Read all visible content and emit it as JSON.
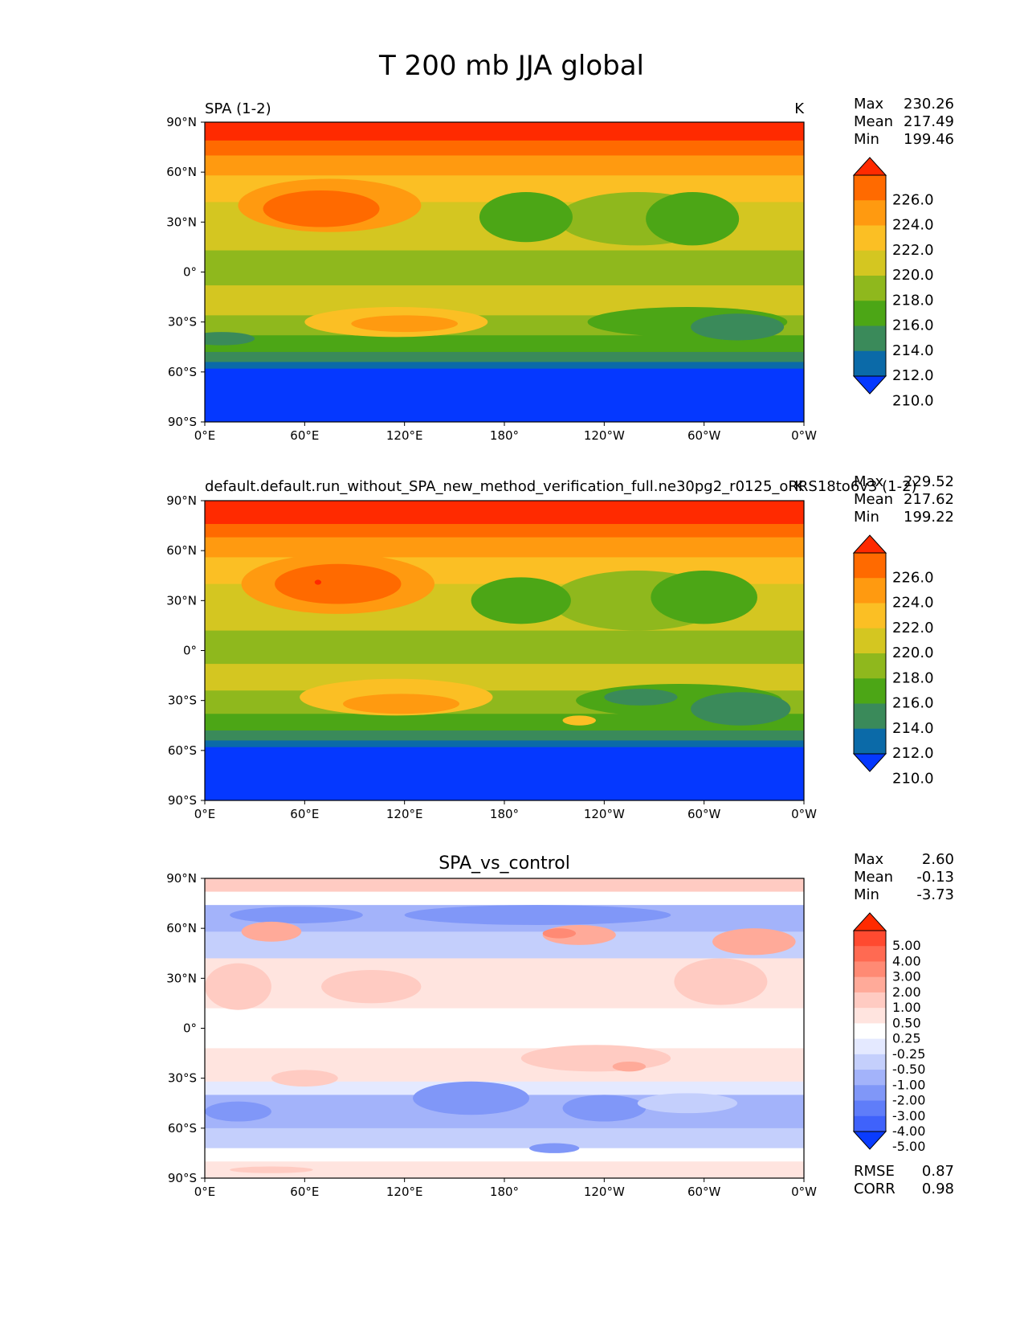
{
  "figure_title": "T 200 mb JJA global",
  "chart_data": [
    {
      "type": "heatmap",
      "id": "test",
      "title_left": "SPA (1-2)",
      "title_center": "",
      "units": "K",
      "stats": {
        "labels": [
          "Max",
          "Mean",
          "Min"
        ],
        "values": [
          "230.26",
          "217.49",
          "199.46"
        ]
      },
      "x_ticks": [
        "0°E",
        "60°E",
        "120°E",
        "180°",
        "120°W",
        "60°W",
        "0°W"
      ],
      "y_ticks": [
        "90°N",
        "60°N",
        "30°N",
        "0°",
        "30°S",
        "60°S",
        "90°S"
      ],
      "xlim": [
        0,
        360
      ],
      "ylim": [
        -90,
        90
      ],
      "colorbar": {
        "levels": [
          "226.0",
          "224.0",
          "222.0",
          "220.0",
          "218.0",
          "216.0",
          "214.0",
          "212.0",
          "210.0"
        ],
        "colors": [
          "#ff2a00",
          "#ff6a00",
          "#ff9a10",
          "#fbbf24",
          "#d4c621",
          "#8fb81d",
          "#4ca616",
          "#3a8a5a",
          "#0b6aa8",
          "#0538ff"
        ]
      },
      "bands": [
        {
          "lat_top": 90,
          "lat_bot": 79,
          "color": "#ff2a00"
        },
        {
          "lat_top": 79,
          "lat_bot": 70,
          "color": "#ff6a00"
        },
        {
          "lat_top": 70,
          "lat_bot": 58,
          "color": "#ff9a10"
        },
        {
          "lat_top": 58,
          "lat_bot": 42,
          "color": "#fbbf24"
        },
        {
          "lat_top": 42,
          "lat_bot": 13,
          "color": "#d4c621"
        },
        {
          "lat_top": 13,
          "lat_bot": -8,
          "color": "#8fb81d"
        },
        {
          "lat_top": -8,
          "lat_bot": -26,
          "color": "#d4c621"
        },
        {
          "lat_top": -26,
          "lat_bot": -38,
          "color": "#8fb81d"
        },
        {
          "lat_top": -38,
          "lat_bot": -48,
          "color": "#4ca616"
        },
        {
          "lat_top": -48,
          "lat_bot": -54,
          "color": "#3a8a5a"
        },
        {
          "lat_top": -54,
          "lat_bot": -58,
          "color": "#0b6aa8"
        },
        {
          "lat_top": -58,
          "lat_bot": -90,
          "color": "#0538ff"
        }
      ],
      "blobs": [
        {
          "lon": 75,
          "lat": 40,
          "rlon": 55,
          "rlat": 16,
          "color": "#ff9a10"
        },
        {
          "lon": 70,
          "lat": 38,
          "rlon": 35,
          "rlat": 11,
          "color": "#ff6a00"
        },
        {
          "lon": 260,
          "lat": 32,
          "rlon": 48,
          "rlat": 16,
          "color": "#8fb81d"
        },
        {
          "lon": 193,
          "lat": 33,
          "rlon": 28,
          "rlat": 15,
          "color": "#4ca616"
        },
        {
          "lon": 293,
          "lat": 32,
          "rlon": 28,
          "rlat": 16,
          "color": "#4ca616"
        },
        {
          "lon": 115,
          "lat": -30,
          "rlon": 55,
          "rlat": 9,
          "color": "#fbbf24"
        },
        {
          "lon": 120,
          "lat": -31,
          "rlon": 32,
          "rlat": 5,
          "color": "#ff9a10"
        },
        {
          "lon": 290,
          "lat": -30,
          "rlon": 60,
          "rlat": 9,
          "color": "#4ca616"
        },
        {
          "lon": 320,
          "lat": -33,
          "rlon": 28,
          "rlat": 8,
          "color": "#3a8a5a"
        },
        {
          "lon": 10,
          "lat": -40,
          "rlon": 20,
          "rlat": 4,
          "color": "#3a8a5a"
        }
      ]
    },
    {
      "type": "heatmap",
      "id": "ref",
      "title_left": "default.default.run_without_SPA_new_method_verification_full.ne30pg2_r0125_oRRS18to6v3 (1-2)",
      "title_center": "",
      "units": "K",
      "stats": {
        "labels": [
          "Max",
          "Mean",
          "Min"
        ],
        "values": [
          "229.52",
          "217.62",
          "199.22"
        ]
      },
      "x_ticks": [
        "0°E",
        "60°E",
        "120°E",
        "180°",
        "120°W",
        "60°W",
        "0°W"
      ],
      "y_ticks": [
        "90°N",
        "60°N",
        "30°N",
        "0°",
        "30°S",
        "60°S",
        "90°S"
      ],
      "xlim": [
        0,
        360
      ],
      "ylim": [
        -90,
        90
      ],
      "colorbar": {
        "levels": [
          "226.0",
          "224.0",
          "222.0",
          "220.0",
          "218.0",
          "216.0",
          "214.0",
          "212.0",
          "210.0"
        ],
        "colors": [
          "#ff2a00",
          "#ff6a00",
          "#ff9a10",
          "#fbbf24",
          "#d4c621",
          "#8fb81d",
          "#4ca616",
          "#3a8a5a",
          "#0b6aa8",
          "#0538ff"
        ]
      },
      "bands": [
        {
          "lat_top": 90,
          "lat_bot": 76,
          "color": "#ff2a00"
        },
        {
          "lat_top": 76,
          "lat_bot": 68,
          "color": "#ff6a00"
        },
        {
          "lat_top": 68,
          "lat_bot": 56,
          "color": "#ff9a10"
        },
        {
          "lat_top": 56,
          "lat_bot": 40,
          "color": "#fbbf24"
        },
        {
          "lat_top": 40,
          "lat_bot": 12,
          "color": "#d4c621"
        },
        {
          "lat_top": 12,
          "lat_bot": -8,
          "color": "#8fb81d"
        },
        {
          "lat_top": -8,
          "lat_bot": -24,
          "color": "#d4c621"
        },
        {
          "lat_top": -24,
          "lat_bot": -38,
          "color": "#8fb81d"
        },
        {
          "lat_top": -38,
          "lat_bot": -48,
          "color": "#4ca616"
        },
        {
          "lat_top": -48,
          "lat_bot": -54,
          "color": "#3a8a5a"
        },
        {
          "lat_top": -54,
          "lat_bot": -58,
          "color": "#0b6aa8"
        },
        {
          "lat_top": -58,
          "lat_bot": -90,
          "color": "#0538ff"
        }
      ],
      "blobs": [
        {
          "lon": 80,
          "lat": 40,
          "rlon": 58,
          "rlat": 18,
          "color": "#ff9a10"
        },
        {
          "lon": 80,
          "lat": 40,
          "rlon": 38,
          "rlat": 12,
          "color": "#ff6a00"
        },
        {
          "lon": 68,
          "lat": 41,
          "rlon": 2,
          "rlat": 1.5,
          "color": "#ff2a00"
        },
        {
          "lon": 260,
          "lat": 30,
          "rlon": 52,
          "rlat": 18,
          "color": "#8fb81d"
        },
        {
          "lon": 190,
          "lat": 30,
          "rlon": 30,
          "rlat": 14,
          "color": "#4ca616"
        },
        {
          "lon": 300,
          "lat": 32,
          "rlon": 32,
          "rlat": 16,
          "color": "#4ca616"
        },
        {
          "lon": 115,
          "lat": -28,
          "rlon": 58,
          "rlat": 11,
          "color": "#fbbf24"
        },
        {
          "lon": 118,
          "lat": -32,
          "rlon": 35,
          "rlat": 6,
          "color": "#ff9a10"
        },
        {
          "lon": 225,
          "lat": -42,
          "rlon": 10,
          "rlat": 3,
          "color": "#fbbf24"
        },
        {
          "lon": 285,
          "lat": -30,
          "rlon": 62,
          "rlat": 10,
          "color": "#4ca616"
        },
        {
          "lon": 322,
          "lat": -35,
          "rlon": 30,
          "rlat": 10,
          "color": "#3a8a5a"
        },
        {
          "lon": 262,
          "lat": -28,
          "rlon": 22,
          "rlat": 5,
          "color": "#3a8a5a"
        }
      ]
    },
    {
      "type": "heatmap",
      "id": "diff",
      "title_left": "",
      "title_center": "SPA_vs_control",
      "units": "",
      "stats": {
        "labels": [
          "Max",
          "Mean",
          "Min"
        ],
        "values": [
          "2.60",
          "-0.13",
          "-3.73"
        ]
      },
      "metrics": {
        "labels": [
          "RMSE",
          "CORR"
        ],
        "values": [
          "0.87",
          "0.98"
        ]
      },
      "x_ticks": [
        "0°E",
        "60°E",
        "120°E",
        "180°",
        "120°W",
        "60°W",
        "0°W"
      ],
      "y_ticks": [
        "90°N",
        "60°N",
        "30°N",
        "0°",
        "30°S",
        "60°S",
        "90°S"
      ],
      "xlim": [
        0,
        360
      ],
      "ylim": [
        -90,
        90
      ],
      "colorbar": {
        "levels": [
          "5.00",
          "4.00",
          "3.00",
          "2.00",
          "1.00",
          "0.50",
          "0.25",
          "-0.25",
          "-0.50",
          "-1.00",
          "-2.00",
          "-3.00",
          "-4.00",
          "-5.00"
        ],
        "colors": [
          "#ff2a00",
          "#ff4a30",
          "#ff6a52",
          "#ff8a74",
          "#ffaa99",
          "#ffcbc2",
          "#ffe4df",
          "#ffffff",
          "#e4e9ff",
          "#c4cffc",
          "#a3b3fa",
          "#8097f8",
          "#5f7df9",
          "#3f62fb",
          "#0a3cff"
        ]
      },
      "bands": [
        {
          "lat_top": 90,
          "lat_bot": 82,
          "color": "#ffcbc2"
        },
        {
          "lat_top": 82,
          "lat_bot": 74,
          "color": "#ffffff"
        },
        {
          "lat_top": 74,
          "lat_bot": 58,
          "color": "#a3b3fa"
        },
        {
          "lat_top": 58,
          "lat_bot": 42,
          "color": "#c4cffc"
        },
        {
          "lat_top": 42,
          "lat_bot": 12,
          "color": "#ffe4df"
        },
        {
          "lat_top": 12,
          "lat_bot": -12,
          "color": "#ffffff"
        },
        {
          "lat_top": -12,
          "lat_bot": -32,
          "color": "#ffe4df"
        },
        {
          "lat_top": -32,
          "lat_bot": -40,
          "color": "#e4e9ff"
        },
        {
          "lat_top": -40,
          "lat_bot": -60,
          "color": "#a3b3fa"
        },
        {
          "lat_top": -60,
          "lat_bot": -72,
          "color": "#c4cffc"
        },
        {
          "lat_top": -72,
          "lat_bot": -80,
          "color": "#ffffff"
        },
        {
          "lat_top": -80,
          "lat_bot": -90,
          "color": "#ffe4df"
        }
      ],
      "blobs": [
        {
          "lon": 200,
          "lat": 68,
          "rlon": 80,
          "rlat": 6,
          "color": "#8097f8"
        },
        {
          "lon": 55,
          "lat": 68,
          "rlon": 40,
          "rlat": 5,
          "color": "#8097f8"
        },
        {
          "lon": 40,
          "lat": 58,
          "rlon": 18,
          "rlat": 6,
          "color": "#ffaa99"
        },
        {
          "lon": 225,
          "lat": 56,
          "rlon": 22,
          "rlat": 6,
          "color": "#ffaa99"
        },
        {
          "lon": 213,
          "lat": 57,
          "rlon": 10,
          "rlat": 3,
          "color": "#ff8a74"
        },
        {
          "lon": 330,
          "lat": 52,
          "rlon": 25,
          "rlat": 8,
          "color": "#ffaa99"
        },
        {
          "lon": 20,
          "lat": 25,
          "rlon": 20,
          "rlat": 14,
          "color": "#ffcbc2"
        },
        {
          "lon": 310,
          "lat": 28,
          "rlon": 28,
          "rlat": 14,
          "color": "#ffcbc2"
        },
        {
          "lon": 100,
          "lat": 25,
          "rlon": 30,
          "rlat": 10,
          "color": "#ffcbc2"
        },
        {
          "lon": 235,
          "lat": -18,
          "rlon": 45,
          "rlat": 8,
          "color": "#ffcbc2"
        },
        {
          "lon": 255,
          "lat": -23,
          "rlon": 10,
          "rlat": 3,
          "color": "#ffaa99"
        },
        {
          "lon": 60,
          "lat": -30,
          "rlon": 20,
          "rlat": 5,
          "color": "#ffcbc2"
        },
        {
          "lon": 160,
          "lat": -42,
          "rlon": 35,
          "rlat": 10,
          "color": "#8097f8"
        },
        {
          "lon": 240,
          "lat": -48,
          "rlon": 25,
          "rlat": 8,
          "color": "#8097f8"
        },
        {
          "lon": 20,
          "lat": -50,
          "rlon": 20,
          "rlat": 6,
          "color": "#8097f8"
        },
        {
          "lon": 290,
          "lat": -45,
          "rlon": 30,
          "rlat": 6,
          "color": "#c4cffc"
        },
        {
          "lon": 210,
          "lat": -72,
          "rlon": 15,
          "rlat": 3,
          "color": "#8097f8"
        },
        {
          "lon": 40,
          "lat": -85,
          "rlon": 25,
          "rlat": 2,
          "color": "#ffcbc2"
        }
      ]
    }
  ]
}
